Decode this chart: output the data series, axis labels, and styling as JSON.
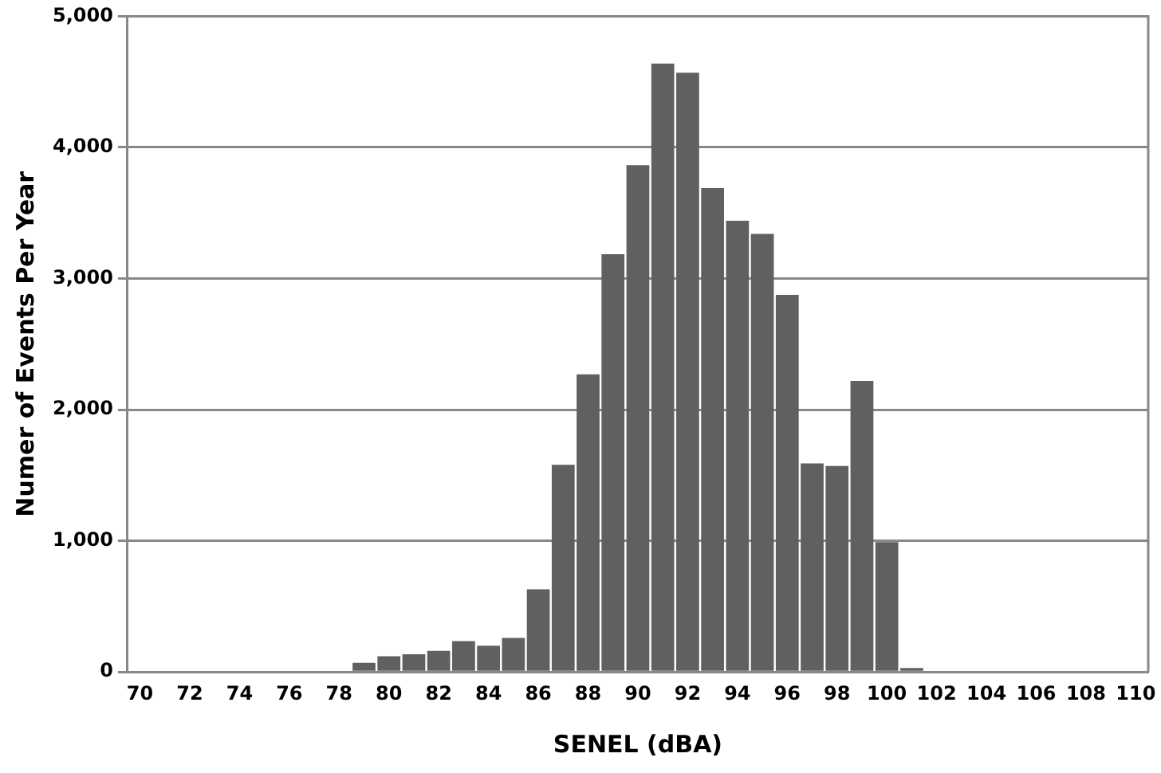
{
  "chart_data": {
    "type": "bar",
    "xlabel": "SENEL (dBA)",
    "ylabel": "Numer of Events Per Year",
    "categories": [
      "70",
      null,
      "72",
      null,
      "74",
      null,
      "76",
      null,
      "78",
      null,
      "80",
      null,
      "82",
      null,
      "84",
      null,
      "86",
      null,
      "88",
      null,
      "90",
      null,
      "92",
      null,
      "94",
      null,
      "96",
      null,
      "98",
      null,
      "100",
      null,
      "102",
      null,
      "104",
      null,
      "106",
      null,
      "108",
      null,
      "110"
    ],
    "values": [
      0,
      0,
      0,
      0,
      0,
      0,
      0,
      0,
      0,
      70,
      120,
      135,
      160,
      235,
      200,
      260,
      630,
      1580,
      2270,
      3185,
      3865,
      4640,
      4570,
      3690,
      3440,
      3340,
      2875,
      1590,
      1570,
      2220,
      990,
      30,
      0,
      0,
      0,
      0,
      0,
      0,
      0,
      0,
      0
    ],
    "color": "#606060",
    "ylim": [
      0,
      5000
    ],
    "yticks": [
      {
        "value": 0,
        "label": "0"
      },
      {
        "value": 1000,
        "label": "1,000"
      },
      {
        "value": 2000,
        "label": "2,000"
      },
      {
        "value": 3000,
        "label": "3,000"
      },
      {
        "value": 4000,
        "label": "4,000"
      },
      {
        "value": 5000,
        "label": "5,000"
      }
    ],
    "grid": "y",
    "legend": false
  }
}
